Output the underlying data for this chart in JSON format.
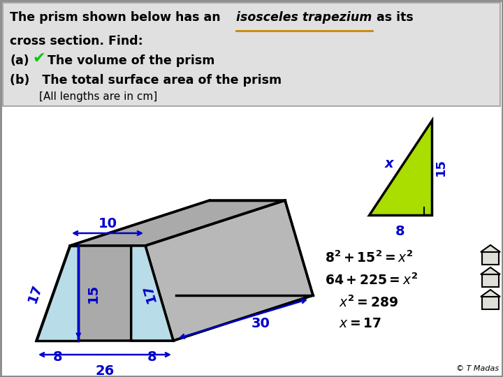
{
  "white_bg": "#ffffff",
  "header_bg": "#e0e0e0",
  "prism_gray": "#aaaaaa",
  "prism_gray2": "#b8b8b8",
  "blue_face": "#b8dde8",
  "blue_line": "#0000cc",
  "black_line": "#000000",
  "green_tri": "#aadd00",
  "orange_under": "#cc8800",
  "checkmark_color": "#00cc00",
  "eq_color": "#000000",
  "copyright": "© T Madas",
  "label_10": "10",
  "label_26": "26",
  "label_30": "30",
  "label_17a": "17",
  "label_17b": "17",
  "label_15": "15",
  "label_8a": "8",
  "label_8b": "8",
  "label_x": "x",
  "label_15_tri": "15",
  "label_8_tri": "8"
}
